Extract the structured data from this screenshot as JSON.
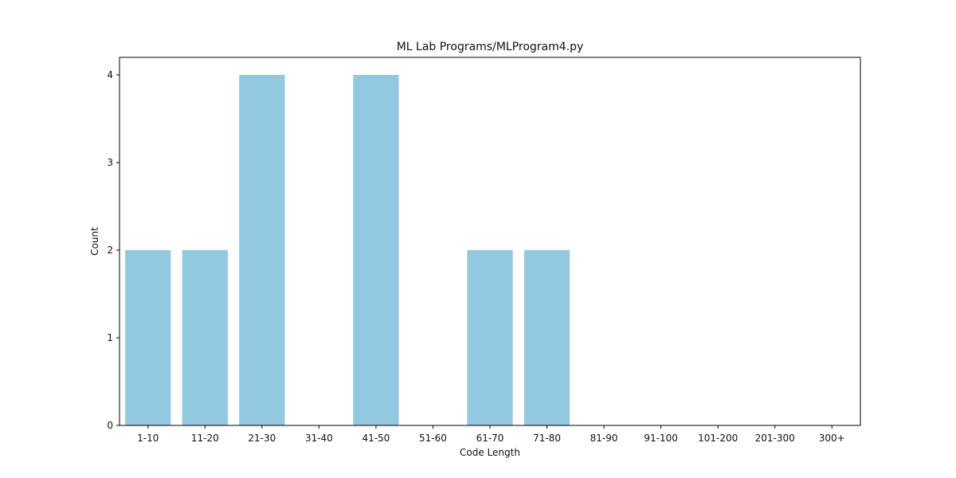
{
  "chart_data": {
    "type": "bar",
    "title": "ML Lab Programs/MLProgram4.py",
    "xlabel": "Code Length",
    "ylabel": "Count",
    "categories": [
      "1-10",
      "11-20",
      "21-30",
      "31-40",
      "41-50",
      "51-60",
      "61-70",
      "71-80",
      "81-90",
      "91-100",
      "101-200",
      "201-300",
      "300+"
    ],
    "values": [
      2,
      2,
      4,
      0,
      4,
      0,
      2,
      2,
      0,
      0,
      0,
      0,
      0
    ],
    "ylim": [
      0,
      4.2
    ],
    "yticks": [
      0,
      1,
      2,
      3,
      4
    ],
    "grid": false,
    "bar_color": "#92c9e0"
  }
}
